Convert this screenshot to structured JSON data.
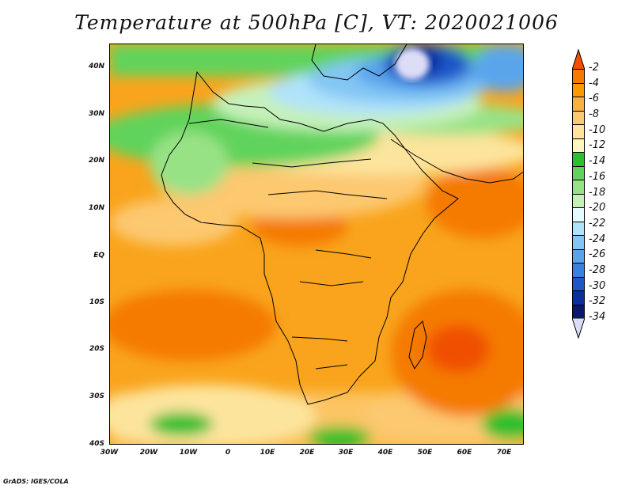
{
  "title": "Temperature at 500hPa [C], VT: 2020021006",
  "credit": "GrADS: IGES/COLA",
  "lat_labels": [
    "40N",
    "30N",
    "20N",
    "10N",
    "EQ",
    "10S",
    "20S",
    "30S",
    "40S"
  ],
  "lon_labels": [
    "30W",
    "20W",
    "10W",
    "0",
    "10E",
    "20E",
    "30E",
    "40E",
    "50E",
    "60E",
    "70E"
  ],
  "colorbar": {
    "labels": [
      "-2",
      "-4",
      "-6",
      "-8",
      "-10",
      "-12",
      "-14",
      "-16",
      "-18",
      "-20",
      "-22",
      "-24",
      "-26",
      "-28",
      "-30",
      "-32",
      "-34"
    ],
    "colors": [
      "#f05000",
      "#f57a00",
      "#f99a00",
      "#f9b040",
      "#fcc870",
      "#fde49c",
      "#fdf5c2",
      "#2dbf2d",
      "#60d35b",
      "#98e286",
      "#c6f0ba",
      "#e6fbff",
      "#b0e3fa",
      "#83c6f4",
      "#5aa4ec",
      "#3781e1",
      "#1f57c8",
      "#0e2e9f",
      "#0a1670",
      "#ddddf8"
    ]
  }
}
